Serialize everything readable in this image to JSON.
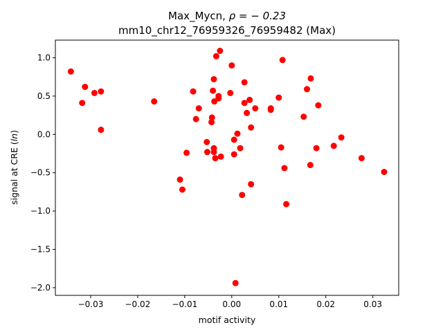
{
  "chart_data": {
    "type": "scatter",
    "title_line1_prefix": "Max_Mycn, ",
    "title_line1_rho": "ρ = − 0.23",
    "title_line2": "mm10_chr12_76959326_76959482 (Max)",
    "xlabel": "motif activity",
    "ylabel_prefix": "signal at CRE (",
    "ylabel_italic": "ln",
    "ylabel_suffix": ")",
    "xlim": [
      -0.0375,
      0.0355
    ],
    "ylim": [
      -2.1,
      1.23
    ],
    "xticks": [
      {
        "value": -0.03,
        "label": "−0.03"
      },
      {
        "value": -0.02,
        "label": "−0.02"
      },
      {
        "value": -0.01,
        "label": "−0.01"
      },
      {
        "value": 0.0,
        "label": "0.00"
      },
      {
        "value": 0.01,
        "label": "0.01"
      },
      {
        "value": 0.02,
        "label": "0.02"
      },
      {
        "value": 0.03,
        "label": "0.03"
      }
    ],
    "yticks": [
      {
        "value": -2.0,
        "label": "−2.0"
      },
      {
        "value": -1.5,
        "label": "−1.5"
      },
      {
        "value": -1.0,
        "label": "−1.0"
      },
      {
        "value": -0.5,
        "label": "−0.5"
      },
      {
        "value": 0.0,
        "label": "0.0"
      },
      {
        "value": 0.5,
        "label": "0.5"
      },
      {
        "value": 1.0,
        "label": "1.0"
      }
    ],
    "marker_color": "#ff0000",
    "points": [
      {
        "x": -0.0342,
        "y": 0.82
      },
      {
        "x": -0.0312,
        "y": 0.62
      },
      {
        "x": -0.0318,
        "y": 0.41
      },
      {
        "x": -0.0292,
        "y": 0.54
      },
      {
        "x": -0.0278,
        "y": 0.56
      },
      {
        "x": -0.0278,
        "y": 0.06
      },
      {
        "x": -0.0165,
        "y": 0.43
      },
      {
        "x": -0.011,
        "y": -0.59
      },
      {
        "x": -0.0105,
        "y": -0.72
      },
      {
        "x": -0.0096,
        "y": -0.24
      },
      {
        "x": -0.0082,
        "y": 0.56
      },
      {
        "x": -0.0076,
        "y": 0.2
      },
      {
        "x": -0.007,
        "y": 0.34
      },
      {
        "x": -0.0053,
        "y": -0.1
      },
      {
        "x": -0.0052,
        "y": -0.23
      },
      {
        "x": -0.0043,
        "y": 0.16
      },
      {
        "x": -0.0042,
        "y": 0.22
      },
      {
        "x": -0.004,
        "y": 0.57
      },
      {
        "x": -0.0038,
        "y": 0.72
      },
      {
        "x": -0.0038,
        "y": -0.18
      },
      {
        "x": -0.0038,
        "y": -0.23
      },
      {
        "x": -0.0037,
        "y": 0.43
      },
      {
        "x": -0.0035,
        "y": -0.31
      },
      {
        "x": -0.0033,
        "y": 1.02
      },
      {
        "x": -0.0028,
        "y": 0.5
      },
      {
        "x": -0.0028,
        "y": 0.47
      },
      {
        "x": -0.0025,
        "y": 1.09
      },
      {
        "x": -0.0023,
        "y": -0.29
      },
      {
        "x": -0.0003,
        "y": 0.54
      },
      {
        "x": 0.0,
        "y": 0.9
      },
      {
        "x": 0.0005,
        "y": -0.07
      },
      {
        "x": 0.0005,
        "y": -0.26
      },
      {
        "x": 0.0008,
        "y": -1.94
      },
      {
        "x": 0.0012,
        "y": 0.01
      },
      {
        "x": 0.0018,
        "y": -0.18
      },
      {
        "x": 0.0022,
        "y": -0.79
      },
      {
        "x": 0.0027,
        "y": 0.68
      },
      {
        "x": 0.0027,
        "y": 0.41
      },
      {
        "x": 0.0032,
        "y": 0.28
      },
      {
        "x": 0.0038,
        "y": 0.45
      },
      {
        "x": 0.0041,
        "y": 0.09
      },
      {
        "x": 0.0041,
        "y": -0.65
      },
      {
        "x": 0.005,
        "y": 0.34
      },
      {
        "x": 0.0083,
        "y": 0.34
      },
      {
        "x": 0.0083,
        "y": 0.32
      },
      {
        "x": 0.01,
        "y": 0.48
      },
      {
        "x": 0.0105,
        "y": -0.17
      },
      {
        "x": 0.0108,
        "y": 0.97
      },
      {
        "x": 0.0112,
        "y": -0.44
      },
      {
        "x": 0.0116,
        "y": -0.91
      },
      {
        "x": 0.0153,
        "y": 0.23
      },
      {
        "x": 0.016,
        "y": 0.59
      },
      {
        "x": 0.0167,
        "y": -0.4
      },
      {
        "x": 0.0168,
        "y": 0.73
      },
      {
        "x": 0.018,
        "y": -0.18
      },
      {
        "x": 0.0184,
        "y": 0.38
      },
      {
        "x": 0.0217,
        "y": -0.15
      },
      {
        "x": 0.0233,
        "y": -0.04
      },
      {
        "x": 0.0276,
        "y": -0.31
      },
      {
        "x": 0.0324,
        "y": -0.49
      }
    ]
  }
}
